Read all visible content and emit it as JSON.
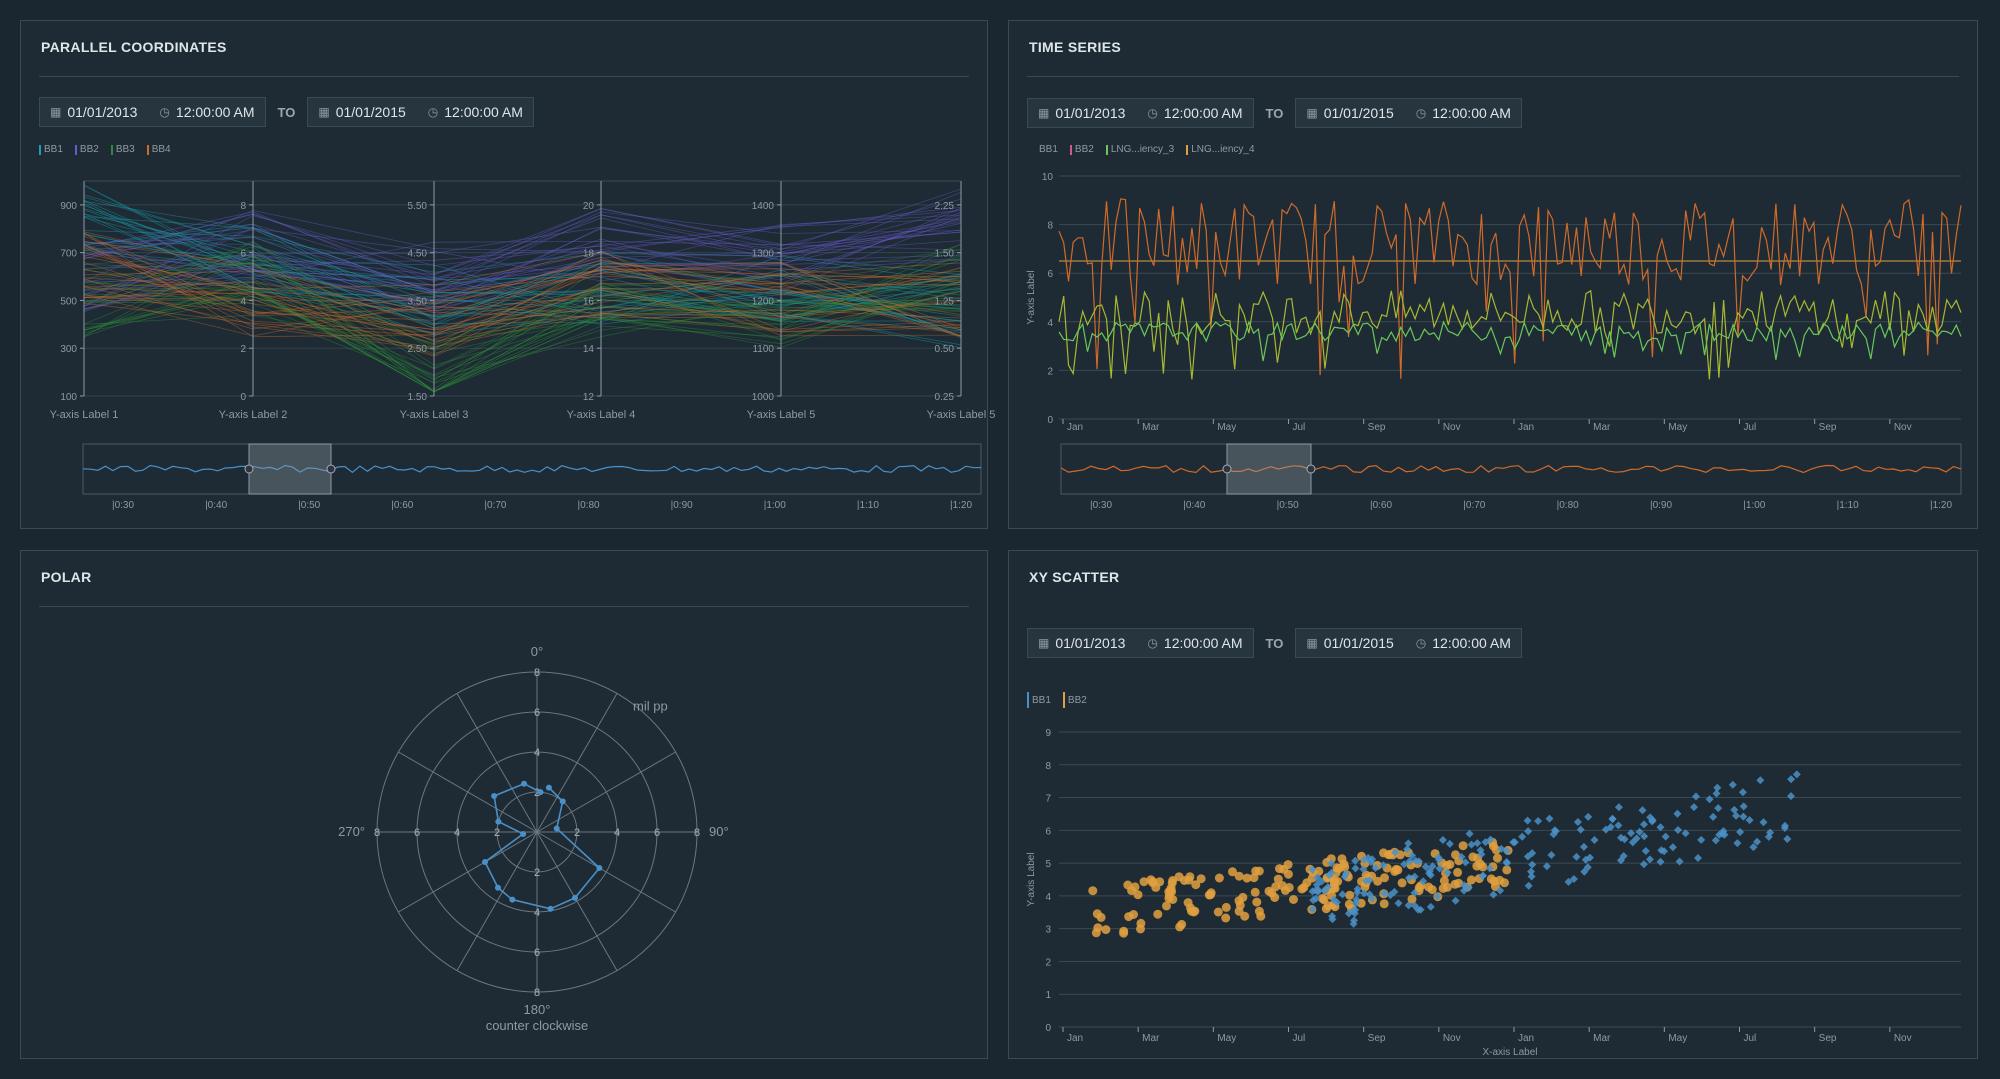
{
  "panels": {
    "parallel": {
      "title": "PARALLEL COORDINATES",
      "start_date": "01/01/2013",
      "start_time": "12:00:00 AM",
      "to": "TO",
      "end_date": "01/01/2015",
      "end_time": "12:00:00 AM"
    },
    "timeseries": {
      "title": "TIME SERIES",
      "start_date": "01/01/2013",
      "start_time": "12:00:00 AM",
      "to": "TO",
      "end_date": "01/01/2015",
      "end_time": "12:00:00 AM"
    },
    "polar": {
      "title": "POLAR"
    },
    "scatter": {
      "title": "XY SCATTER",
      "start_date": "01/01/2013",
      "start_time": "12:00:00 AM",
      "to": "TO",
      "end_date": "01/01/2015",
      "end_time": "12:00:00 AM"
    }
  },
  "colors": {
    "blue": "#4a90c8",
    "purple": "#6a5acd",
    "green": "#2e8b3a",
    "orange": "#d06a2a",
    "pink": "#d05a8a",
    "lime": "#a8b832",
    "lgreen": "#6ac85a",
    "amber": "#e0a040",
    "teal": "#1aa0b0"
  },
  "chart_data": [
    {
      "type": "parallel-coordinates",
      "legend": [
        {
          "name": "BB1",
          "color": "#1aa0b0"
        },
        {
          "name": "BB2",
          "color": "#6a5acd"
        },
        {
          "name": "BB3",
          "color": "#2e8b3a"
        },
        {
          "name": "BB4",
          "color": "#d06a2a"
        }
      ],
      "axes": [
        {
          "label": "Y-axis Label 1",
          "ticks": [
            "100",
            "300",
            "500",
            "700",
            "900"
          ],
          "min": 100,
          "max": 1000
        },
        {
          "label": "Y-axis Label 2",
          "ticks": [
            "0",
            "2",
            "4",
            "6",
            "8"
          ],
          "min": 0,
          "max": 9
        },
        {
          "label": "Y-axis Label 3",
          "ticks": [
            "1.50",
            "2.50",
            "3.50",
            "4.50",
            "5.50"
          ],
          "min": 1.5,
          "max": 6.0
        },
        {
          "label": "Y-axis Label 4",
          "ticks": [
            "12",
            "14",
            "16",
            "18",
            "20"
          ],
          "min": 12,
          "max": 21
        },
        {
          "label": "Y-axis Label 5",
          "ticks": [
            "1000",
            "1100",
            "1200",
            "1300",
            "1400"
          ],
          "min": 1000,
          "max": 1450
        },
        {
          "label": "Y-axis Label 5",
          "ticks": [
            "0.25",
            "0.50",
            "1.25",
            "1.50",
            "2.25"
          ],
          "min": 0.25,
          "max": 2.4
        }
      ],
      "brush_ticks": [
        "|0:30",
        "|0:40",
        "|0:50",
        "|0:60",
        "|0:70",
        "|0:80",
        "|0:90",
        "|1:00",
        "|1:10",
        "|1:20"
      ]
    },
    {
      "type": "line",
      "legend": [
        {
          "name": "BB1",
          "color": "#8e9aa3"
        },
        {
          "name": "BB2",
          "color": "#d05a8a"
        },
        {
          "name": "LNG...iency_3",
          "color": "#6ac85a"
        },
        {
          "name": "LNG...iency_4",
          "color": "#e0a040"
        }
      ],
      "ylabel": "Y-axis Label",
      "y_ticks": [
        "0",
        "2",
        "4",
        "6",
        "8",
        "10"
      ],
      "ylim": [
        0,
        10
      ],
      "x_ticks": [
        "Jan",
        "Mar",
        "May",
        "Jul",
        "Sep",
        "Nov",
        "Jan",
        "Mar",
        "May",
        "Jul",
        "Sep",
        "Nov"
      ],
      "reference_y": 6.5,
      "series_levels": [
        {
          "mean": 7.3,
          "amp": 1.8,
          "color": "#d06a2a"
        },
        {
          "mean": 4.4,
          "amp": 0.9,
          "color": "#a8b832"
        },
        {
          "mean": 3.6,
          "amp": 0.4,
          "color": "#6ac85a"
        }
      ],
      "brush_ticks": [
        "|0:30",
        "|0:40",
        "|0:50",
        "|0:60",
        "|0:70",
        "|0:80",
        "|0:90",
        "|1:00",
        "|1:10",
        "|1:20"
      ]
    },
    {
      "type": "polar",
      "angle_labels": {
        "top": "0°",
        "right": "90°",
        "bottom": "180°",
        "left": "270°"
      },
      "radial_ticks": [
        "2",
        "4",
        "6",
        "8"
      ],
      "rmax": 8,
      "unit_label": "mil pp",
      "direction_label": "counter clockwise",
      "points": [
        [
          15,
          2.3
        ],
        [
          40,
          2.0
        ],
        [
          80,
          1.0
        ],
        [
          120,
          3.6
        ],
        [
          150,
          3.8
        ],
        [
          170,
          3.9
        ],
        [
          200,
          3.6
        ],
        [
          215,
          3.4
        ],
        [
          240,
          3.0
        ],
        [
          262,
          0.7
        ],
        [
          285,
          2.0
        ],
        [
          310,
          2.8
        ],
        [
          345,
          2.5
        ],
        [
          5,
          2.0
        ]
      ]
    },
    {
      "type": "scatter",
      "legend": [
        {
          "name": "BB1",
          "color": "#4a90c8"
        },
        {
          "name": "BB2",
          "color": "#e0a040"
        }
      ],
      "xlabel": "X-axis Label",
      "ylabel": "Y-axis Label",
      "y_ticks": [
        "0",
        "1",
        "2",
        "3",
        "4",
        "5",
        "6",
        "7",
        "8",
        "9"
      ],
      "ylim": [
        0,
        9
      ],
      "x_ticks": [
        "Jan",
        "Mar",
        "May",
        "Jul",
        "Sep",
        "Nov",
        "Jan",
        "Mar",
        "May",
        "Jul",
        "Sep",
        "Nov"
      ]
    }
  ]
}
